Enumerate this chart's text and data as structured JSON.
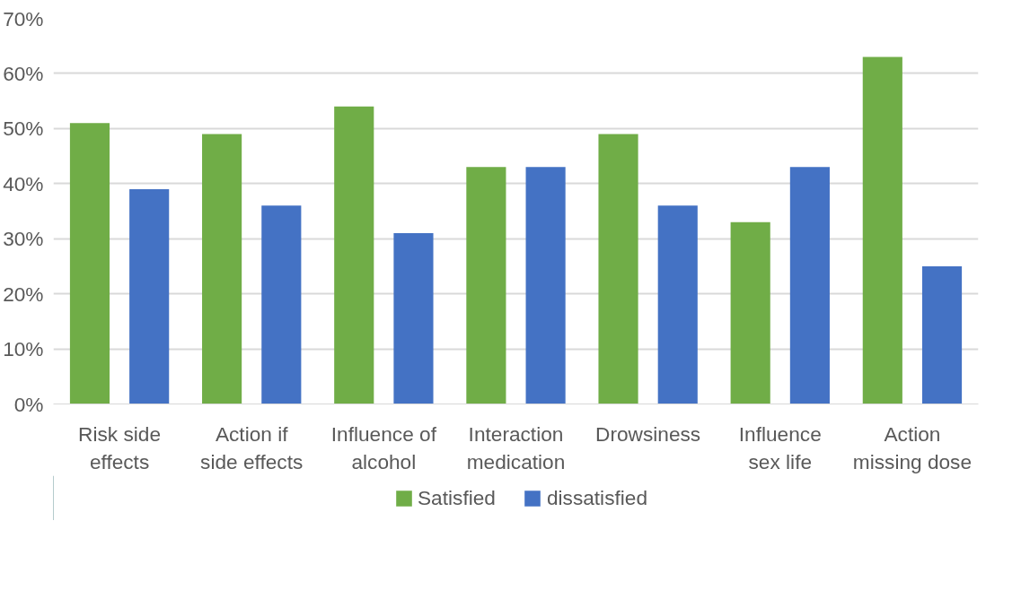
{
  "chart_data": {
    "type": "bar",
    "categories": [
      "Risk side effects",
      "Action if side effects",
      "Influence of alcohol",
      "Interaction medication",
      "Drowsiness",
      "Influence sex life",
      "Action missing dose"
    ],
    "series": [
      {
        "name": "Satisfied",
        "color": "#70ad47",
        "values": [
          51,
          49,
          54,
          43,
          49,
          33,
          63
        ]
      },
      {
        "name": "dissatisfied",
        "color": "#4472c4",
        "values": [
          39,
          36,
          31,
          43,
          36,
          43,
          25
        ]
      }
    ],
    "ylim": [
      0,
      70
    ],
    "yticks": [
      {
        "value": 0,
        "label": "0%"
      },
      {
        "value": 10,
        "label": "10%"
      },
      {
        "value": 20,
        "label": "20%"
      },
      {
        "value": 30,
        "label": "30%"
      },
      {
        "value": 40,
        "label": "40%"
      },
      {
        "value": 50,
        "label": "50%"
      },
      {
        "value": 60,
        "label": "60%"
      },
      {
        "value": 70,
        "label": "70%"
      }
    ],
    "grid": "y",
    "legend": "bottom"
  }
}
